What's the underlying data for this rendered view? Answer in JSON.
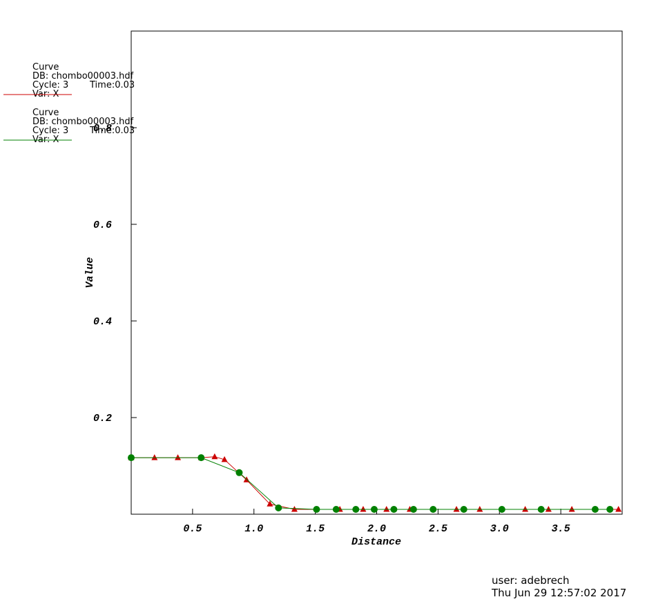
{
  "chart_data": {
    "type": "line",
    "xlabel": "Distance",
    "ylabel": "Value",
    "xlim": [
      0,
      4
    ],
    "ylim": [
      0,
      1
    ],
    "xticks": [
      0.5,
      {
        "value": 1,
        "label": "1.0"
      },
      1.5,
      {
        "value": 2,
        "label": "2.0"
      },
      2.5,
      {
        "value": 3,
        "label": "3.0"
      },
      3.5
    ],
    "yticks": [
      0.2,
      0.4,
      0.6,
      0.8
    ],
    "series": [
      {
        "name": "Curve",
        "db": "DB: chombo00003.hdf",
        "cycle": "Cycle: 3",
        "time": "Time:0.03",
        "var": "Var: X",
        "color": "#cc0000",
        "marker": "triangle",
        "x": [
          0,
          0.19,
          0.38,
          0.57,
          0.68,
          0.76,
          0.94,
          1.13,
          1.33,
          1.7,
          1.89,
          2.08,
          2.27,
          2.65,
          2.84,
          3.21,
          3.4,
          3.59,
          3.97
        ],
        "values": [
          0.117,
          0.117,
          0.117,
          0.117,
          0.119,
          0.113,
          0.071,
          0.021,
          0.01,
          0.01,
          0.01,
          0.01,
          0.01,
          0.01,
          0.01,
          0.01,
          0.01,
          0.01,
          0.01
        ]
      },
      {
        "name": "Curve",
        "db": "DB: chombo00003.hdf",
        "cycle": "Cycle: 3",
        "time": "Time:0.03",
        "var": "Var: X",
        "color": "#008000",
        "marker": "circle",
        "x": [
          0,
          0.57,
          0.88,
          1.2,
          1.51,
          1.67,
          1.83,
          1.98,
          2.14,
          2.3,
          2.46,
          2.71,
          3.02,
          3.34,
          3.78,
          3.9
        ],
        "values": [
          0.117,
          0.117,
          0.086,
          0.013,
          0.01,
          0.01,
          0.01,
          0.01,
          0.01,
          0.01,
          0.01,
          0.01,
          0.01,
          0.01,
          0.01,
          0.01
        ]
      }
    ]
  },
  "footer": {
    "user": "user: adebrech",
    "date": "Thu Jun 29 12:57:02 2017"
  }
}
